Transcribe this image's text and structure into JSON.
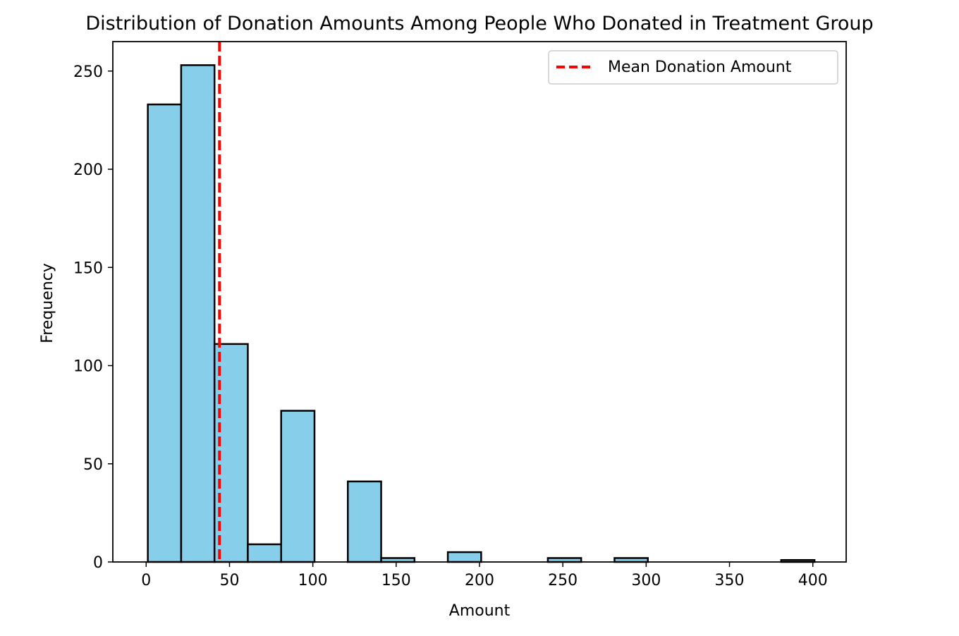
{
  "chart_data": {
    "type": "bar",
    "title": "Distribution of Donation Amounts Among People Who Donated in Treatment Group",
    "xlabel": "Amount",
    "ylabel": "Frequency",
    "xlim": [
      -20,
      420
    ],
    "ylim": [
      0,
      265
    ],
    "x_ticks": [
      0,
      50,
      100,
      150,
      200,
      250,
      300,
      350,
      400
    ],
    "y_ticks": [
      0,
      50,
      100,
      150,
      200,
      250
    ],
    "bins": [
      {
        "x0": 1,
        "x1": 21,
        "count": 233
      },
      {
        "x0": 21,
        "x1": 41,
        "count": 253
      },
      {
        "x0": 41,
        "x1": 61,
        "count": 111
      },
      {
        "x0": 61,
        "x1": 81,
        "count": 9
      },
      {
        "x0": 81,
        "x1": 101,
        "count": 77
      },
      {
        "x0": 101,
        "x1": 121,
        "count": 0
      },
      {
        "x0": 121,
        "x1": 141,
        "count": 41
      },
      {
        "x0": 141,
        "x1": 161,
        "count": 2
      },
      {
        "x0": 161,
        "x1": 181,
        "count": 0
      },
      {
        "x0": 181,
        "x1": 201,
        "count": 5
      },
      {
        "x0": 201,
        "x1": 221,
        "count": 0
      },
      {
        "x0": 221,
        "x1": 241,
        "count": 0
      },
      {
        "x0": 241,
        "x1": 261,
        "count": 2
      },
      {
        "x0": 261,
        "x1": 281,
        "count": 0
      },
      {
        "x0": 281,
        "x1": 301,
        "count": 2
      },
      {
        "x0": 301,
        "x1": 321,
        "count": 0
      },
      {
        "x0": 321,
        "x1": 341,
        "count": 0
      },
      {
        "x0": 341,
        "x1": 361,
        "count": 0
      },
      {
        "x0": 361,
        "x1": 381,
        "count": 0
      },
      {
        "x0": 381,
        "x1": 401,
        "count": 1
      }
    ],
    "mean_line": {
      "value": 44,
      "label": "Mean Donation Amount",
      "color": "#ff0000",
      "style": "dashed"
    },
    "bar_color": "#87ceeb",
    "bar_edge_color": "#000000",
    "legend_position": "top-right",
    "grid": false
  }
}
